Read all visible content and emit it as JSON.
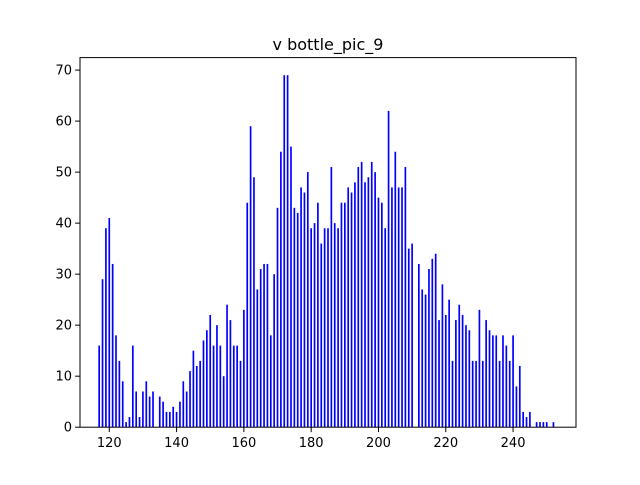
{
  "chart_data": {
    "type": "bar",
    "title": "v bottle_pic_9",
    "xlabel": "",
    "ylabel": "",
    "xlim": [
      111.3,
      258.7
    ],
    "ylim": [
      0,
      72.45
    ],
    "xticks": [
      120,
      140,
      160,
      180,
      200,
      220,
      240
    ],
    "yticks": [
      0,
      10,
      20,
      30,
      40,
      50,
      60,
      70
    ],
    "bar_color": "#0000ff",
    "grid": false,
    "legend": "none",
    "x": [
      117,
      118,
      119,
      120,
      121,
      122,
      123,
      124,
      125,
      126,
      127,
      128,
      129,
      130,
      131,
      132,
      133,
      134,
      135,
      136,
      137,
      138,
      139,
      140,
      141,
      142,
      143,
      144,
      145,
      146,
      147,
      148,
      149,
      150,
      151,
      152,
      153,
      154,
      155,
      156,
      157,
      158,
      159,
      160,
      161,
      162,
      163,
      164,
      165,
      166,
      167,
      168,
      169,
      170,
      171,
      172,
      173,
      174,
      175,
      176,
      177,
      178,
      179,
      180,
      181,
      182,
      183,
      184,
      185,
      186,
      187,
      188,
      189,
      190,
      191,
      192,
      193,
      194,
      195,
      196,
      197,
      198,
      199,
      200,
      201,
      202,
      203,
      204,
      205,
      206,
      207,
      208,
      209,
      210,
      211,
      212,
      213,
      214,
      215,
      216,
      217,
      218,
      219,
      220,
      221,
      222,
      223,
      224,
      225,
      226,
      227,
      228,
      229,
      230,
      231,
      232,
      233,
      234,
      235,
      236,
      237,
      238,
      239,
      240,
      241,
      242,
      243,
      244,
      245,
      246,
      247,
      248,
      249,
      250,
      251,
      252
    ],
    "values": [
      16,
      29,
      39,
      41,
      32,
      18,
      13,
      9,
      1,
      2,
      16,
      7,
      2,
      7,
      9,
      6,
      7,
      0,
      6,
      5,
      3,
      3,
      4,
      3,
      5,
      9,
      7,
      11,
      15,
      12,
      13,
      17,
      19,
      22,
      16,
      20,
      16,
      10,
      24,
      21,
      16,
      16,
      13,
      23,
      44,
      59,
      49,
      27,
      31,
      32,
      32,
      18,
      30,
      43,
      54,
      69,
      69,
      55,
      43,
      42,
      47,
      46,
      50,
      39,
      40,
      44,
      36,
      39,
      39,
      51,
      40,
      39,
      44,
      44,
      47,
      46,
      48,
      51,
      52,
      48,
      49,
      52,
      50,
      45,
      44,
      39,
      62,
      47,
      54,
      47,
      47,
      51,
      35,
      36,
      0,
      32,
      27,
      26,
      31,
      33,
      34,
      21,
      28,
      22,
      25,
      13,
      21,
      24,
      22,
      20,
      19,
      13,
      13,
      23,
      13,
      21,
      19,
      18,
      18,
      13,
      18,
      16,
      13,
      18,
      8,
      12,
      3,
      2,
      3,
      0,
      1,
      1,
      1,
      1,
      0,
      1
    ]
  }
}
